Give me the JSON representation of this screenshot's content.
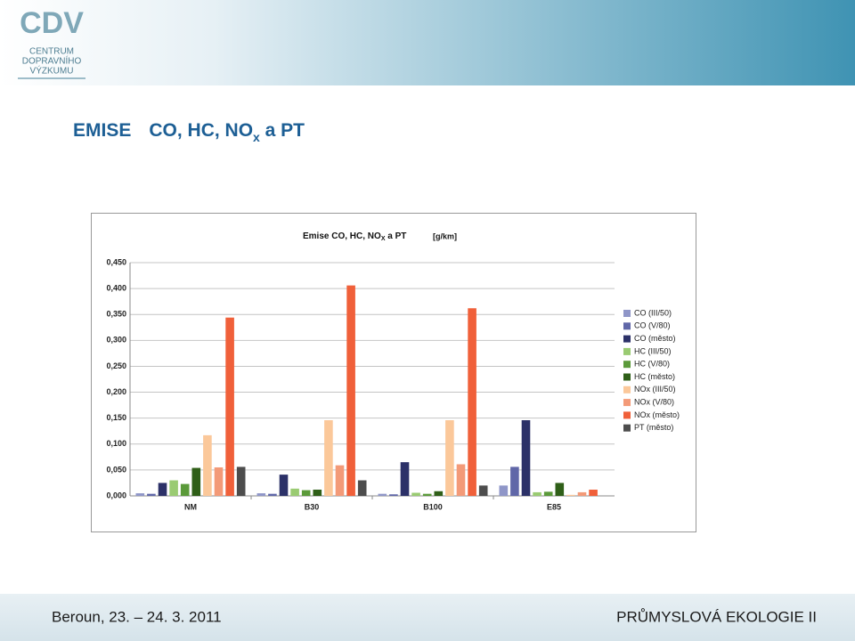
{
  "header": {
    "logo_mark": "CDV",
    "logo_lines": [
      "CENTRUM",
      "DOPRAVNÍHO",
      "VÝZKUMU"
    ]
  },
  "slide_title": [
    "EMISE",
    "CO, HC, NO",
    "x",
    " a PT"
  ],
  "chart_data": {
    "type": "bar",
    "title": [
      "Emise CO, HC, NO",
      "X",
      " a PT"
    ],
    "unit": "[g/km]",
    "categories": [
      "NM",
      "B30",
      "B100",
      "E85"
    ],
    "series": [
      {
        "name": "CO (III/50)",
        "color": "#8f96c8",
        "values": [
          0.005,
          0.005,
          0.004,
          0.02
        ]
      },
      {
        "name": "CO (V/80)",
        "color": "#6067a8",
        "values": [
          0.004,
          0.004,
          0.003,
          0.056
        ]
      },
      {
        "name": "CO (město)",
        "color": "#2c3168",
        "values": [
          0.025,
          0.041,
          0.065,
          0.146
        ]
      },
      {
        "name": "HC (III/50)",
        "color": "#9acb72",
        "values": [
          0.03,
          0.014,
          0.006,
          0.007
        ]
      },
      {
        "name": "HC (V/80)",
        "color": "#5b9a3a",
        "values": [
          0.023,
          0.011,
          0.004,
          0.008
        ]
      },
      {
        "name": "HC (město)",
        "color": "#2f5f18",
        "values": [
          0.054,
          0.012,
          0.009,
          0.025
        ]
      },
      {
        "name": "NOx (III/50)",
        "color": "#fbc89a",
        "values": [
          0.117,
          0.146,
          0.146,
          0.002
        ]
      },
      {
        "name": "NOx (V/80)",
        "color": "#f39a78",
        "values": [
          0.055,
          0.059,
          0.061,
          0.007
        ]
      },
      {
        "name": "NOx (město)",
        "color": "#f0603a",
        "values": [
          0.344,
          0.406,
          0.362,
          0.012
        ]
      },
      {
        "name": "PT (město)",
        "color": "#4d4d4d",
        "values": [
          0.056,
          0.03,
          0.02,
          0
        ]
      }
    ],
    "ylim": [
      0,
      0.45
    ],
    "yticks": [
      {
        "value": 0,
        "label": "0,000"
      },
      {
        "value": 0.05,
        "label": "0,050"
      },
      {
        "value": 0.1,
        "label": "0,100"
      },
      {
        "value": 0.15,
        "label": "0,150"
      },
      {
        "value": 0.2,
        "label": "0,200"
      },
      {
        "value": 0.25,
        "label": "0,250"
      },
      {
        "value": 0.3,
        "label": "0,300"
      },
      {
        "value": 0.35,
        "label": "0,350"
      },
      {
        "value": 0.4,
        "label": "0,400"
      },
      {
        "value": 0.45,
        "label": "0,450"
      }
    ],
    "grid": true,
    "legend": "right"
  },
  "footer": {
    "left": "Beroun, 23. – 24. 3. 2011",
    "right": "PRŮMYSLOVÁ EKOLOGIE II"
  }
}
